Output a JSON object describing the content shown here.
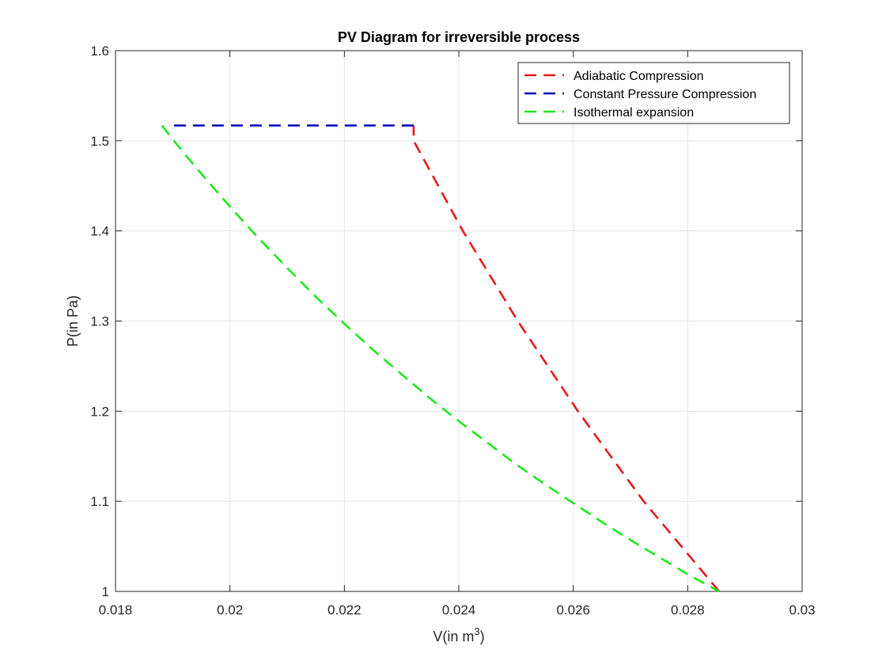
{
  "chart_data": {
    "type": "line",
    "title": "PV Diagram for irreversible process",
    "xlabel_main": "V(in m",
    "xlabel_sup": "3",
    "xlabel_close": ")",
    "ylabel": "P(in Pa)",
    "xlim": [
      0.018,
      0.03
    ],
    "ylim": [
      1.0,
      1.6
    ],
    "xticks": [
      0.018,
      0.02,
      0.022,
      0.024,
      0.026,
      0.028,
      0.03
    ],
    "xtick_labels": [
      "0.018",
      "0.02",
      "0.022",
      "0.024",
      "0.026",
      "0.028",
      "0.03"
    ],
    "yticks": [
      1.0,
      1.1,
      1.2,
      1.3,
      1.4,
      1.5,
      1.6
    ],
    "ytick_labels": [
      "1",
      "1.1",
      "1.2",
      "1.3",
      "1.4",
      "1.5",
      "1.6"
    ],
    "grid": true,
    "legend_position": "top-right",
    "series": [
      {
        "name": "Adiabatic Compression",
        "color": "#e41a1c",
        "points": [
          [
            0.02855,
            1.0
          ],
          [
            0.02723,
            1.1
          ],
          [
            0.02608,
            1.2
          ],
          [
            0.02503,
            1.3
          ],
          [
            0.02407,
            1.4
          ],
          [
            0.02321,
            1.5
          ],
          [
            0.02321,
            1.517
          ]
        ]
      },
      {
        "name": "Constant Pressure Compression",
        "color": "#0000b8",
        "points": [
          [
            0.02321,
            1.517
          ],
          [
            0.01893,
            1.517
          ]
        ]
      },
      {
        "name": "Isothermal expansion",
        "color": "#1ee81e",
        "points": [
          [
            0.01881,
            1.517
          ],
          [
            0.0192,
            1.486
          ],
          [
            0.0196,
            1.456
          ],
          [
            0.02,
            1.427
          ],
          [
            0.0205,
            1.392
          ],
          [
            0.021,
            1.359
          ],
          [
            0.0215,
            1.327
          ],
          [
            0.022,
            1.297
          ],
          [
            0.0225,
            1.268
          ],
          [
            0.023,
            1.241
          ],
          [
            0.0235,
            1.214
          ],
          [
            0.024,
            1.189
          ],
          [
            0.0245,
            1.165
          ],
          [
            0.025,
            1.141
          ],
          [
            0.0255,
            1.119
          ],
          [
            0.026,
            1.098
          ],
          [
            0.0265,
            1.077
          ],
          [
            0.027,
            1.057
          ],
          [
            0.0275,
            1.038
          ],
          [
            0.028,
            1.019
          ],
          [
            0.02855,
            1.0
          ]
        ]
      }
    ]
  }
}
